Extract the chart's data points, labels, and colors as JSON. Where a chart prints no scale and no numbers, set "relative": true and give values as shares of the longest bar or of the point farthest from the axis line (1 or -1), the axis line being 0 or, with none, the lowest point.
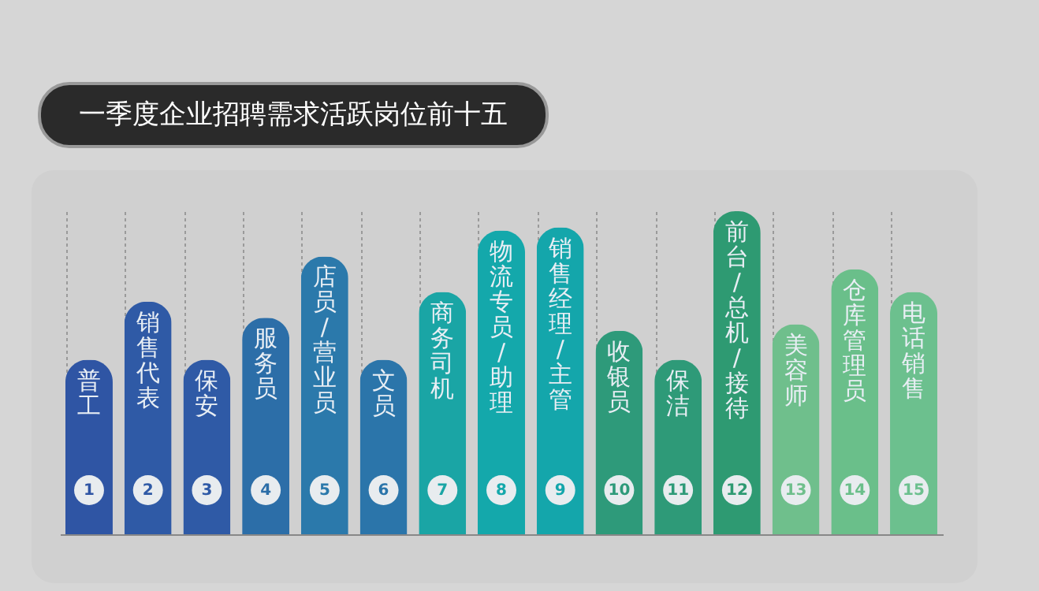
{
  "chart_data": {
    "type": "bar",
    "title": "一季度企业招聘需求活跃岗位前十五",
    "relative": true,
    "grid": "x",
    "categories": [
      "普工",
      "销售代表",
      "保安",
      "服务员",
      "店员/营业员",
      "文员",
      "商务司机",
      "物流专员/助理",
      "销售经理/主管",
      "收银员",
      "保洁",
      "前台/总机/接待",
      "美容师",
      "仓库管理员",
      "电话销售"
    ],
    "values": [
      0.54,
      0.72,
      0.54,
      0.67,
      0.86,
      0.54,
      0.75,
      0.94,
      0.95,
      0.63,
      0.54,
      1,
      0.65,
      0.82,
      0.75
    ],
    "annotations": [
      "1",
      "2",
      "3",
      "4",
      "5",
      "6",
      "7",
      "8",
      "9",
      "10",
      "11",
      "12",
      "13",
      "14",
      "15"
    ],
    "colors": [
      "#2f55a4",
      "#2f5aa6",
      "#2f5aa6",
      "#2c6ea8",
      "#2b79ab",
      "#2b75aa",
      "#1aa5a5",
      "#14a8ab",
      "#14a6ab",
      "#2e9a7a",
      "#2e9a78",
      "#2e9a72",
      "#6fbf8c",
      "#6abf8a",
      "#6cc08e"
    ]
  }
}
